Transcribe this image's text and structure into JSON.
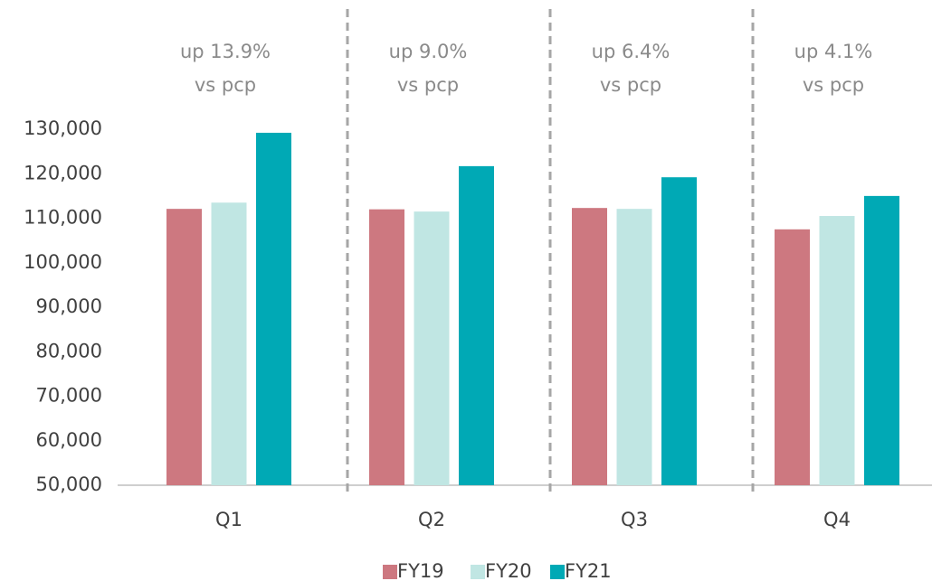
{
  "chart_data": {
    "type": "bar",
    "categories": [
      "Q1",
      "Q2",
      "Q3",
      "Q4"
    ],
    "series": [
      {
        "name": "FY19",
        "color": "#cd7880",
        "values": [
          112100,
          112000,
          112300,
          107500
        ]
      },
      {
        "name": "FY20",
        "color": "#c0e6e3",
        "values": [
          113500,
          111500,
          112100,
          110500
        ]
      },
      {
        "name": "FY21",
        "color": "#00a9b5",
        "values": [
          129200,
          121700,
          119200,
          115000
        ]
      }
    ],
    "annotations": [
      [
        "up 13.9%",
        "vs pcp"
      ],
      [
        "up 9.0%",
        "vs pcp"
      ],
      [
        "up 6.4%",
        "vs pcp"
      ],
      [
        "up 4.1%",
        "vs pcp"
      ]
    ],
    "ylim": [
      50000,
      130000
    ],
    "yticks": [
      {
        "value": 50000,
        "label": "50,000"
      },
      {
        "value": 60000,
        "label": "60,000"
      },
      {
        "value": 70000,
        "label": "70,000"
      },
      {
        "value": 80000,
        "label": "80,000"
      },
      {
        "value": 90000,
        "label": "90,000"
      },
      {
        "value": 100000,
        "label": "100,000"
      },
      {
        "value": 110000,
        "label": "110,000"
      },
      {
        "value": 120000,
        "label": "120,000"
      },
      {
        "value": 130000,
        "label": "130,000"
      }
    ],
    "grid": false,
    "legend": "bottom"
  }
}
